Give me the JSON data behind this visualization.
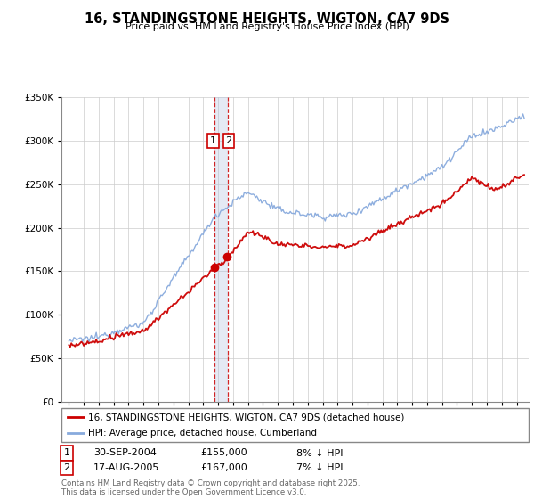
{
  "title": "16, STANDINGSTONE HEIGHTS, WIGTON, CA7 9DS",
  "subtitle": "Price paid vs. HM Land Registry's House Price Index (HPI)",
  "ylim": [
    0,
    350000
  ],
  "yticks": [
    0,
    50000,
    100000,
    150000,
    200000,
    250000,
    300000,
    350000
  ],
  "red_color": "#cc0000",
  "blue_color": "#88aadd",
  "legend1": "16, STANDINGSTONE HEIGHTS, WIGTON, CA7 9DS (detached house)",
  "legend2": "HPI: Average price, detached house, Cumberland",
  "annotation1_label": "1",
  "annotation1_date": "30-SEP-2004",
  "annotation1_price": "£155,000",
  "annotation1_hpi": "8% ↓ HPI",
  "annotation2_label": "2",
  "annotation2_date": "17-AUG-2005",
  "annotation2_price": "£167,000",
  "annotation2_hpi": "7% ↓ HPI",
  "footnote": "Contains HM Land Registry data © Crown copyright and database right 2025.\nThis data is licensed under the Open Government Licence v3.0.",
  "vline1_x": 2004.75,
  "vline2_x": 2005.625,
  "sale1_price": 155000,
  "sale2_price": 167000,
  "xlim_left": 1994.5,
  "xlim_right": 2025.8
}
